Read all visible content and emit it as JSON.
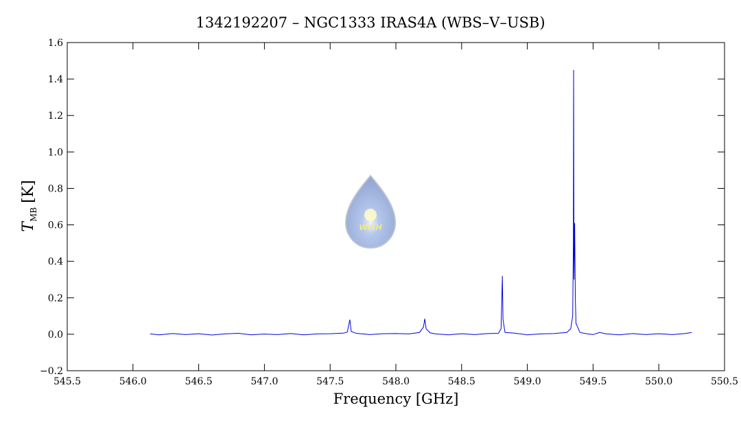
{
  "chart_data": {
    "type": "line",
    "title": "1342192207 – NGC1333 IRAS4A (WBS–V–USB)",
    "xlabel": "Frequency [GHz]",
    "ylabel": "T",
    "ylabel_subscript": "MB",
    "ylabel_unit": "[K]",
    "logo_text": "WISH",
    "xlim": [
      545.5,
      550.5
    ],
    "xticks": [
      {
        "value": 545.5,
        "label": "545.5"
      },
      {
        "value": 546,
        "label": "546.0"
      },
      {
        "value": 546.5,
        "label": "546.5"
      },
      {
        "value": 547,
        "label": "547.0"
      },
      {
        "value": 547.5,
        "label": "547.5"
      },
      {
        "value": 548,
        "label": "548.0"
      },
      {
        "value": 548.5,
        "label": "548.5"
      },
      {
        "value": 549,
        "label": "549.0"
      },
      {
        "value": 549.5,
        "label": "549.5"
      },
      {
        "value": 550,
        "label": "550.0"
      },
      {
        "value": 550.5,
        "label": "550.5"
      }
    ],
    "ylim": [
      -0.2,
      1.6
    ],
    "yticks": [
      {
        "value": -0.2,
        "label": "−0.2"
      },
      {
        "value": 0,
        "label": "0.0"
      },
      {
        "value": 0.2,
        "label": "0.2"
      },
      {
        "value": 0.4,
        "label": "0.4"
      },
      {
        "value": 0.6,
        "label": "0.6"
      },
      {
        "value": 0.8,
        "label": "0.8"
      },
      {
        "value": 1,
        "label": "1.0"
      },
      {
        "value": 1.2,
        "label": "1.2"
      },
      {
        "value": 1.4,
        "label": "1.4"
      },
      {
        "value": 1.6,
        "label": "1.6"
      }
    ],
    "series": [
      {
        "color": "#0000dd",
        "x": [
          546.13,
          546.2,
          546.3,
          546.4,
          546.5,
          546.6,
          546.7,
          546.8,
          546.9,
          547.0,
          547.1,
          547.2,
          547.3,
          547.4,
          547.5,
          547.6,
          547.63,
          547.65,
          547.66,
          547.7,
          547.8,
          547.9,
          548.0,
          548.1,
          548.18,
          548.21,
          548.22,
          548.23,
          548.26,
          548.3,
          548.4,
          548.5,
          548.6,
          548.7,
          548.78,
          548.8,
          548.81,
          548.815,
          548.83,
          548.9,
          549.0,
          549.1,
          549.2,
          549.3,
          549.33,
          549.345,
          549.35,
          549.352,
          549.355,
          549.36,
          549.365,
          549.37,
          549.4,
          549.45,
          549.5,
          549.55,
          549.6,
          549.7,
          549.8,
          549.9,
          550.0,
          550.1,
          550.2,
          550.25
        ],
        "values": [
          0.002,
          -0.003,
          0.004,
          -0.002,
          0.003,
          -0.004,
          0.002,
          0.005,
          -0.003,
          0.001,
          -0.002,
          0.004,
          -0.003,
          0.002,
          0.003,
          0.006,
          0.012,
          0.08,
          0.015,
          0.005,
          -0.002,
          0.003,
          0.004,
          0.002,
          0.01,
          0.04,
          0.085,
          0.03,
          0.008,
          0.002,
          -0.003,
          0.003,
          -0.002,
          0.004,
          0.005,
          0.03,
          0.32,
          0.08,
          0.01,
          0.006,
          -0.003,
          0.002,
          0.004,
          0.01,
          0.03,
          0.1,
          0.5,
          1.45,
          0.3,
          0.61,
          0.2,
          0.06,
          0.01,
          0.003,
          -0.002,
          0.01,
          0.002,
          -0.003,
          0.004,
          -0.002,
          0.003,
          -0.002,
          0.004,
          0.01
        ]
      }
    ]
  }
}
